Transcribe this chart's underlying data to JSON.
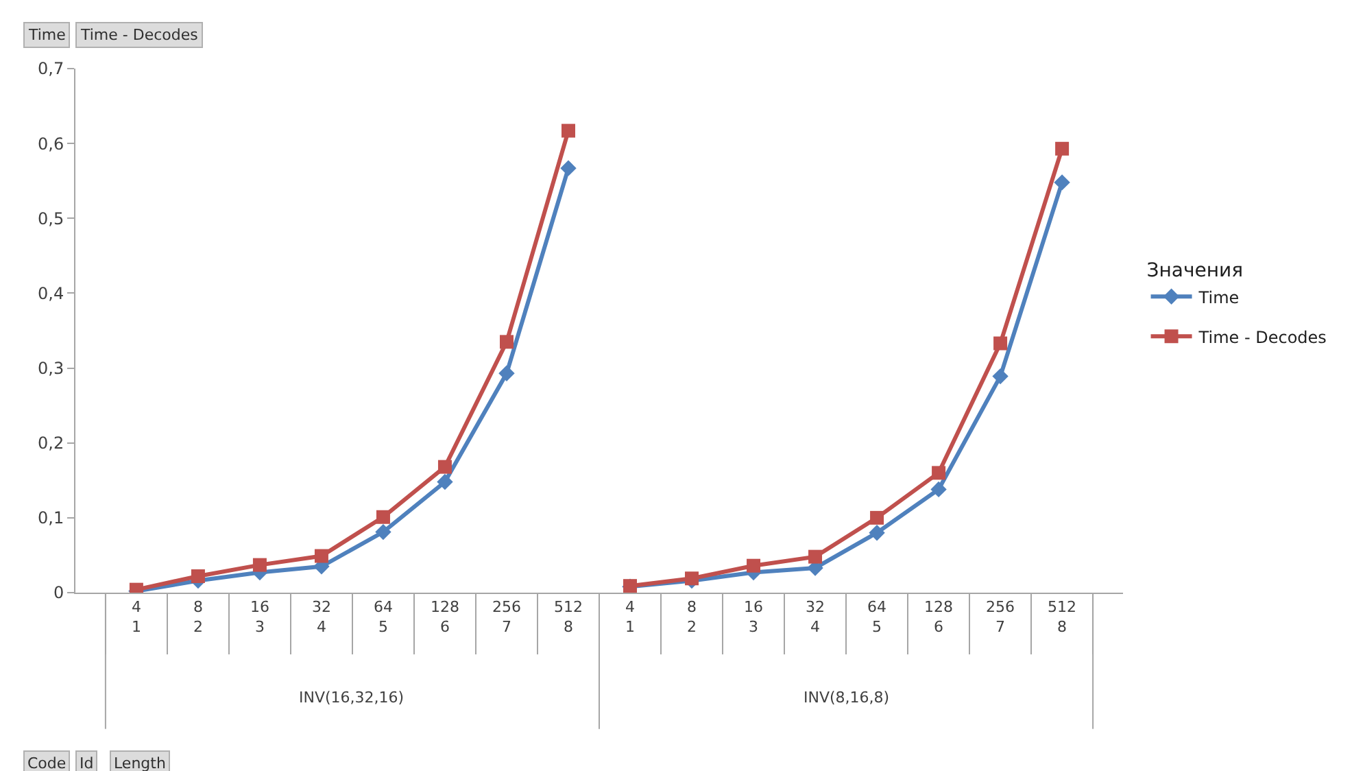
{
  "chart_data": {
    "type": "line",
    "categories": [
      "4\n1",
      "8\n2",
      "16\n3",
      "32\n4",
      "64\n5",
      "128\n6",
      "256\n7",
      "512\n8",
      "4\n1",
      "8\n2",
      "16\n3",
      "32\n4",
      "64\n5",
      "128\n6",
      "256\n7",
      "512\n8"
    ],
    "series": [
      {
        "name": "Time",
        "color": "#4f81bd",
        "marker": "diamond",
        "values": [
          0.002,
          0.016,
          0.027,
          0.035,
          0.081,
          0.148,
          0.293,
          0.567,
          0.008,
          0.016,
          0.027,
          0.033,
          0.08,
          0.138,
          0.289,
          0.548
        ]
      },
      {
        "name": "Time - Decodes",
        "color": "#c0504d",
        "marker": "square",
        "values": [
          0.004,
          0.022,
          0.037,
          0.049,
          0.101,
          0.168,
          0.335,
          0.617,
          0.009,
          0.019,
          0.036,
          0.048,
          0.1,
          0.16,
          0.333,
          0.593
        ]
      }
    ],
    "ylim": [
      0,
      0.7
    ],
    "yticks": [
      0,
      {
        "value": 0.1,
        "label": "0,1"
      },
      {
        "value": 0.2,
        "label": "0,2"
      },
      {
        "value": 0.3,
        "label": "0,3"
      },
      {
        "value": 0.4,
        "label": "0,4"
      },
      {
        "value": 0.5,
        "label": "0,5"
      },
      {
        "value": 0.6,
        "label": "0,6"
      },
      {
        "value": 0.7,
        "label": "0,7"
      }
    ],
    "grid": false,
    "legend": "right",
    "legend_title": "Значения",
    "line_style": "solid",
    "annotations": [
      "Time",
      "Time - Decodes",
      "INV(16,32,16)",
      "INV(8,16,8)",
      "Code",
      "Id",
      "Length"
    ]
  }
}
